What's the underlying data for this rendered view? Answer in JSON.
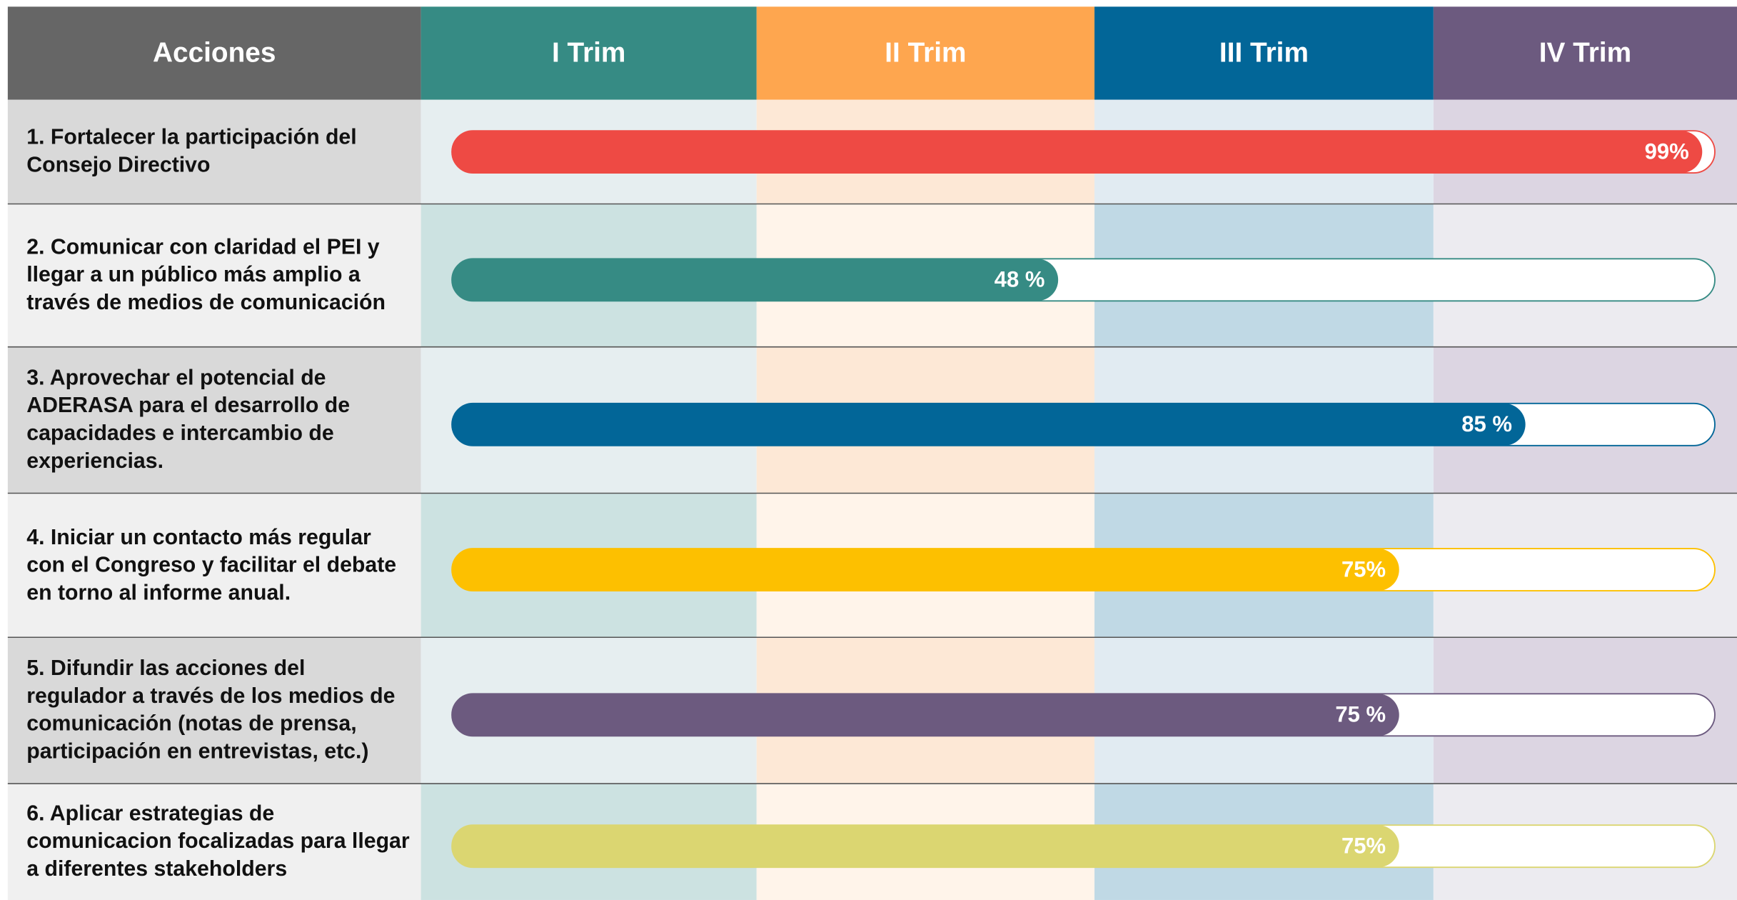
{
  "table": {
    "headers": [
      "Acciones",
      "I Trim",
      "II Trim",
      "III Trim",
      "IV Trim"
    ],
    "header_colors": [
      "#666666",
      "#368b84",
      "#fea64f",
      "#026698",
      "#6c5a7f"
    ],
    "rows": [
      {
        "action": "1. Fortalecer la participación del Consejo Directivo",
        "value": 99,
        "label": "99%",
        "color": "#ee4a44"
      },
      {
        "action": "2. Comunicar con claridad el PEI y llegar a un público más amplio a través de medios de comunicación",
        "value": 48,
        "label": "48 %",
        "color": "#368b84"
      },
      {
        "action": "3. Aprovechar el potencial de ADERASA para el desarrollo de capacidades e intercambio de experiencias.",
        "value": 85,
        "label": "85 %",
        "color": "#026698"
      },
      {
        "action": "4. Iniciar un contacto más regular con el Congreso y facilitar el debate en torno al informe anual.",
        "value": 75,
        "label": "75%",
        "color": "#fdc000"
      },
      {
        "action": "5. Difundir las acciones del regulador a través de los medios de comunicación (notas de prensa, participación en entrevistas, etc.)",
        "value": 75,
        "label": "75 %",
        "color": "#6c5a7f"
      },
      {
        "action": "6. Aplicar estrategias de comunicacion focalizadas para llegar a diferentes stakeholders",
        "value": 75,
        "label": "75%",
        "color": "#dbd671"
      }
    ]
  }
}
